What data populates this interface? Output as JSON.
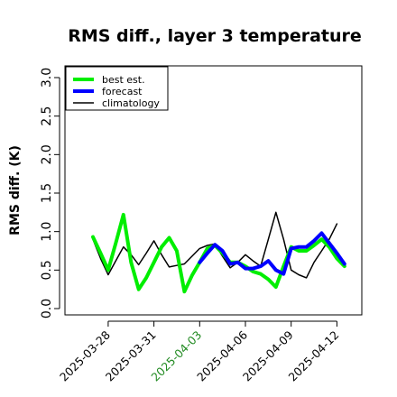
{
  "chart_data": {
    "type": "line",
    "title": "RMS diff., layer 3 temperature",
    "ylabel": "RMS diff. (K)",
    "ylim": [
      0,
      3
    ],
    "yticks": [
      "0.0",
      "0.5",
      "1.0",
      "1.5",
      "2.0",
      "2.5",
      "3.0"
    ],
    "xticks": [
      {
        "label": "2025-03-28",
        "color": "#000000"
      },
      {
        "label": "2025-03-31",
        "color": "#000000"
      },
      {
        "label": "2025-04-03",
        "color": "#228B22"
      },
      {
        "label": "2025-04-06",
        "color": "#000000"
      },
      {
        "label": "2025-04-09",
        "color": "#000000"
      },
      {
        "label": "2025-04-12",
        "color": "#000000"
      }
    ],
    "legend": {
      "placement": "top-left"
    },
    "x": [
      "2025-03-27 00Z",
      "2025-03-27 12Z",
      "2025-03-28 00Z",
      "2025-03-28 12Z",
      "2025-03-29 00Z",
      "2025-03-29 12Z",
      "2025-03-30 00Z",
      "2025-03-30 12Z",
      "2025-03-31 00Z",
      "2025-03-31 12Z",
      "2025-04-01 00Z",
      "2025-04-01 12Z",
      "2025-04-02 00Z",
      "2025-04-02 12Z",
      "2025-04-03 00Z",
      "2025-04-03 12Z",
      "2025-04-04 00Z",
      "2025-04-04 12Z",
      "2025-04-05 00Z",
      "2025-04-05 12Z",
      "2025-04-06 00Z",
      "2025-04-06 12Z",
      "2025-04-07 00Z",
      "2025-04-07 12Z",
      "2025-04-08 00Z",
      "2025-04-08 12Z",
      "2025-04-09 00Z",
      "2025-04-09 12Z",
      "2025-04-10 00Z",
      "2025-04-10 12Z",
      "2025-04-11 00Z",
      "2025-04-11 12Z",
      "2025-04-12 00Z",
      "2025-04-12 12Z"
    ],
    "series": [
      {
        "name": "best est.",
        "color": "#00EE00",
        "stroke": 4,
        "values": [
          0.93,
          0.72,
          0.5,
          0.85,
          1.22,
          0.6,
          0.25,
          0.4,
          0.6,
          0.8,
          0.92,
          0.75,
          0.22,
          0.43,
          0.6,
          0.78,
          0.82,
          0.72,
          0.6,
          0.6,
          0.55,
          0.48,
          0.45,
          0.38,
          0.28,
          0.55,
          0.8,
          0.75,
          0.75,
          0.82,
          0.9,
          0.8,
          0.65,
          0.55
        ]
      },
      {
        "name": "forecast",
        "color": "#0000FF",
        "stroke": 4,
        "values": [
          null,
          null,
          null,
          null,
          null,
          null,
          null,
          null,
          null,
          null,
          null,
          null,
          null,
          null,
          0.6,
          0.72,
          0.83,
          0.75,
          0.58,
          0.6,
          0.52,
          0.52,
          0.55,
          0.62,
          0.5,
          0.45,
          0.78,
          0.8,
          0.8,
          0.88,
          0.98,
          0.85,
          0.72,
          0.58
        ]
      },
      {
        "name": "climatology",
        "color": "#000000",
        "stroke": 1.5,
        "values": [
          0.9,
          0.65,
          0.44,
          0.62,
          0.8,
          0.7,
          0.57,
          0.72,
          0.88,
          0.7,
          0.54,
          0.56,
          0.58,
          0.68,
          0.78,
          0.82,
          0.84,
          0.68,
          0.53,
          0.6,
          0.7,
          0.62,
          0.55,
          0.9,
          1.25,
          0.9,
          0.5,
          0.44,
          0.4,
          0.6,
          0.75,
          0.9,
          1.1,
          null
        ]
      }
    ]
  }
}
